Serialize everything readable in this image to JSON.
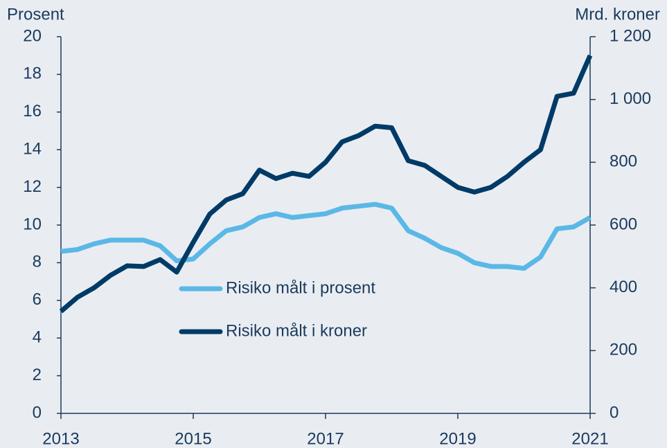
{
  "chart_data": {
    "type": "line",
    "y_label": "Prosent",
    "y2_label": "Mrd. kroner",
    "x": [
      2013,
      2013.25,
      2013.5,
      2013.75,
      2014,
      2014.25,
      2014.5,
      2014.75,
      2015,
      2015.25,
      2015.5,
      2015.75,
      2016,
      2016.25,
      2016.5,
      2016.75,
      2017,
      2017.25,
      2017.5,
      2017.75,
      2018,
      2018.25,
      2018.5,
      2018.75,
      2019,
      2019.25,
      2019.5,
      2019.75,
      2020,
      2020.25,
      2020.5,
      2020.75,
      2021
    ],
    "series": [
      {
        "name": "Risiko målt i prosent",
        "color": "#5bb8e6",
        "axis": "y",
        "values": [
          8.6,
          8.7,
          9.0,
          9.2,
          9.2,
          9.2,
          8.9,
          8.1,
          8.2,
          9.0,
          9.7,
          9.9,
          10.4,
          10.6,
          10.4,
          10.5,
          10.6,
          10.9,
          11.0,
          11.1,
          10.9,
          9.7,
          9.3,
          8.8,
          8.5,
          8.0,
          7.8,
          7.8,
          7.7,
          8.3,
          9.8,
          9.9,
          10.4
        ]
      },
      {
        "name": "Risiko målt i kroner",
        "color": "#003a66",
        "axis": "y2",
        "values": [
          325,
          370,
          400,
          440,
          470,
          468,
          490,
          450,
          545,
          635,
          680,
          700,
          775,
          748,
          765,
          755,
          800,
          865,
          885,
          915,
          910,
          805,
          790,
          755,
          720,
          705,
          720,
          755,
          800,
          840,
          1010,
          1020,
          1140
        ]
      }
    ],
    "xlim": [
      2013,
      2021
    ],
    "xticks": [
      2013,
      2015,
      2017,
      2019,
      2021
    ],
    "ylim": [
      0,
      20
    ],
    "yticks": [
      0,
      2,
      4,
      6,
      8,
      10,
      12,
      14,
      16,
      18,
      20
    ],
    "y2lim": [
      0,
      1200
    ],
    "y2ticks": [
      0,
      200,
      400,
      600,
      800,
      {
        "value": 1000,
        "label": "1 000"
      },
      {
        "value": 1200,
        "label": "1 200"
      }
    ],
    "legend": "center",
    "grid": false
  }
}
